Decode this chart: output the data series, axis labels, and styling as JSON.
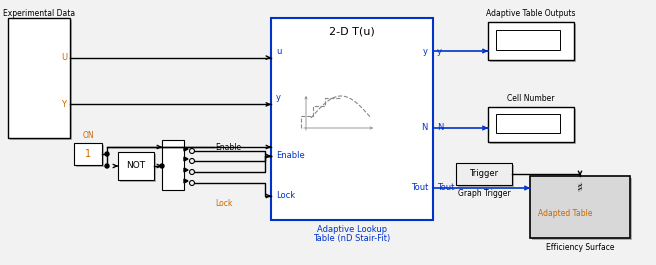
{
  "bg": "#f2f2f2",
  "white": "#ffffff",
  "blue": "#0033cc",
  "black": "#000000",
  "orange": "#cc6600",
  "gray_fill": "#d8d8d8",
  "lt_gray": "#eeeeee",
  "shadow": "#b0b0b0",
  "exp_data_label": "Experimental Data",
  "port_U": "U",
  "port_Y": "Y",
  "on_label": "ON",
  "const_1": "1",
  "not_label": "NOT",
  "enable_label": "Enable",
  "lock_label": "Lock",
  "alt_title": "2-D T(u)",
  "alt_label1": "Adaptive Lookup",
  "alt_label2": "Table (nD Stair-Fit)",
  "in_u": "u",
  "in_y": "y",
  "in_enable": "Enable",
  "in_lock": "Lock",
  "out_y": "y",
  "out_N": "N",
  "out_Tout": "Tout",
  "trigger_label": "Trigger",
  "graph_trigger_label": "Graph Trigger",
  "ato_label": "Adaptive Table Outputs",
  "cn_label": "Cell Number",
  "es_label": "Efficiency Surface",
  "adapted_table": "Adapted Table"
}
